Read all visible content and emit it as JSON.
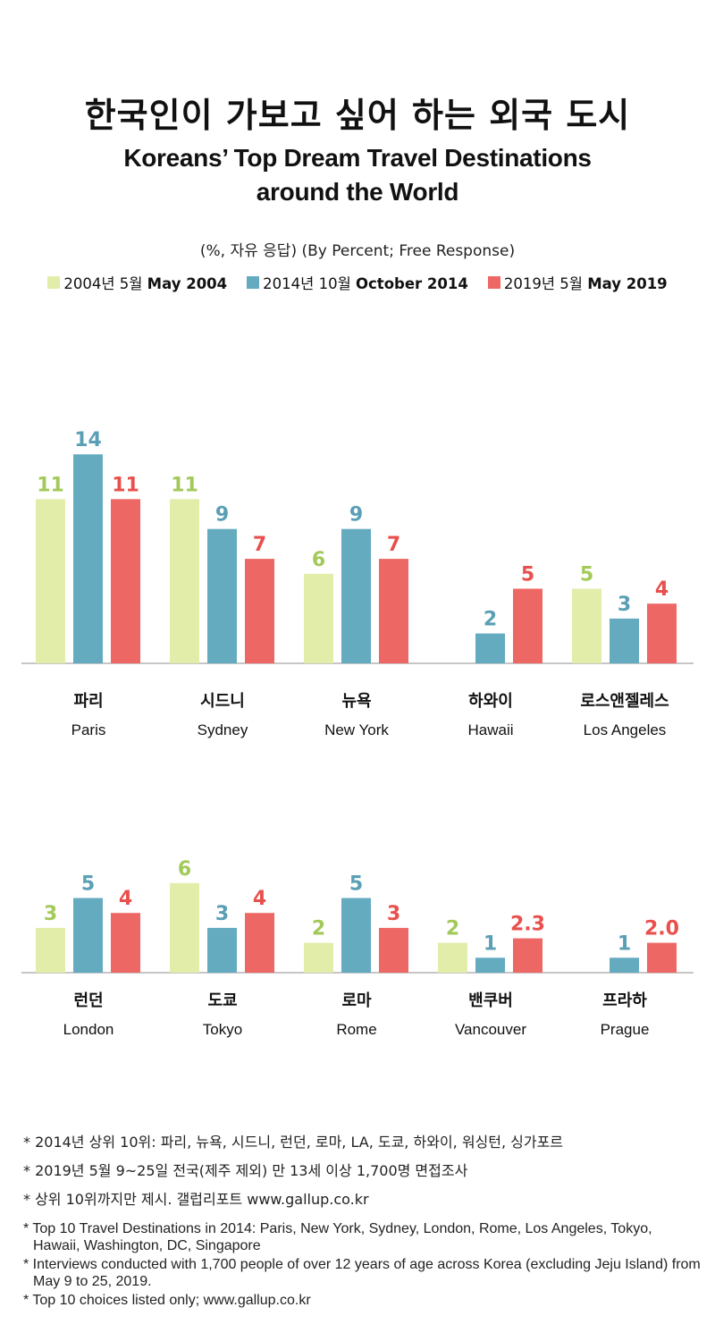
{
  "title_ko": "한국인이 가보고 싶어 하는 외국 도시",
  "title_en_line1": "Koreans’ Top Dream Travel Destinations",
  "title_en_line2": "around the World",
  "subtitle": "(%, 자유 응답) (By Percent; Free Response)",
  "legend": [
    {
      "ko": "2004년 5월 ",
      "en": "May 2004",
      "color": "#e2edaa"
    },
    {
      "ko": "2014년 10월 ",
      "en": "October 2014",
      "color": "#64abc0"
    },
    {
      "ko": "2019년 5월 ",
      "en": "May 2019",
      "color": "#ed6865"
    }
  ],
  "label_colors": [
    "#a3c95a",
    "#5a9fb5",
    "#e8504d"
  ],
  "chart_data": [
    {
      "type": "bar",
      "categories_ko": [
        "파리",
        "시드니",
        "뉴욕",
        "하와이",
        "로스앤젤레스"
      ],
      "categories": [
        "Paris",
        "Sydney",
        "New York",
        "Hawaii",
        "Los Angeles"
      ],
      "series": [
        {
          "name": "2004년 5월 May 2004",
          "values": [
            11,
            11,
            6,
            null,
            5
          ],
          "labels": [
            "11",
            "11",
            "6",
            "",
            "5"
          ]
        },
        {
          "name": "2014년 10월 October 2014",
          "values": [
            14,
            9,
            9,
            2,
            3
          ],
          "labels": [
            "14",
            "9",
            "9",
            "2",
            "3"
          ]
        },
        {
          "name": "2019년 5월 May 2019",
          "values": [
            11,
            7,
            7,
            5,
            4
          ],
          "labels": [
            "11",
            "7",
            "7",
            "5",
            "4"
          ]
        }
      ]
    },
    {
      "type": "bar",
      "categories_ko": [
        "런던",
        "도쿄",
        "로마",
        "밴쿠버",
        "프라하"
      ],
      "categories": [
        "London",
        "Tokyo",
        "Rome",
        "Vancouver",
        "Prague"
      ],
      "series": [
        {
          "name": "2004년 5월 May 2004",
          "values": [
            3,
            6,
            2,
            2,
            null
          ],
          "labels": [
            "3",
            "6",
            "2",
            "2",
            ""
          ]
        },
        {
          "name": "2014년 10월 October 2014",
          "values": [
            5,
            3,
            5,
            1,
            1
          ],
          "labels": [
            "5",
            "3",
            "5",
            "1",
            "1"
          ]
        },
        {
          "name": "2019년 5월 May 2019",
          "values": [
            4,
            4,
            3,
            2.3,
            2.0
          ],
          "labels": [
            "4",
            "4",
            "3",
            "2.3",
            "2.0"
          ]
        }
      ]
    }
  ],
  "notes_ko": [
    "* 2014년 상위 10위: 파리, 뉴욕, 시드니, 런던, 로마, LA, 도쿄, 하와이, 워싱턴, 싱가포르",
    "* 2019년 5월 9~25일 전국(제주 제외) 만 13세 이상 1,700명 면접조사",
    "* 상위 10위까지만 제시. 갤럽리포트 www.gallup.co.kr"
  ],
  "notes_en": [
    "* Top 10 Travel Destinations in 2014: Paris, New York, Sydney, London, Rome, Los Angeles, Tokyo, Hawaii, Washington, DC, Singapore",
    "* Interviews conducted with 1,700 people of over 12 years of age across Korea (excluding Jeju Island) from May 9 to 25, 2019.",
    "* Top 10 choices listed only; www.gallup.co.kr"
  ]
}
